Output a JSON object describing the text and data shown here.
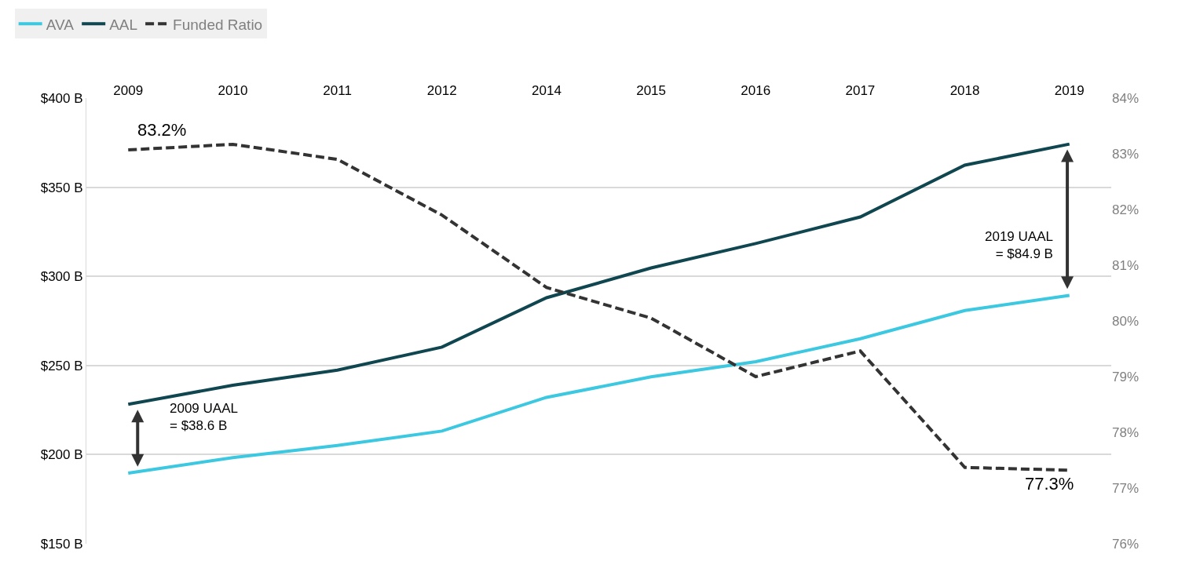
{
  "chart_data": {
    "type": "line",
    "categories": [
      "2009",
      "2010",
      "2011",
      "2012",
      "2014",
      "2015",
      "2016",
      "2017",
      "2018",
      "2019"
    ],
    "series": [
      {
        "name": "AVA",
        "color": "#3cc8e1",
        "values": [
          189.6,
          198.3,
          205.1,
          213.2,
          232.1,
          243.6,
          252.1,
          265.0,
          280.8,
          289.3
        ]
      },
      {
        "name": "AAL",
        "color": "#0f4650",
        "values": [
          228.2,
          238.9,
          247.4,
          260.3,
          288.0,
          304.7,
          318.4,
          333.3,
          362.4,
          374.2
        ]
      },
      {
        "name": "Funded Ratio",
        "color": "#333333",
        "axis": "y2",
        "line_style": "dashed",
        "values": [
          83.07,
          83.17,
          82.9,
          81.9,
          80.6,
          80.05,
          79.0,
          79.46,
          77.37,
          77.32
        ]
      }
    ],
    "ylim": [
      150,
      400
    ],
    "yticks": [
      {
        "value": 150,
        "label": "$150 B"
      },
      {
        "value": 200,
        "label": "$200 B"
      },
      {
        "value": 250,
        "label": "$250 B"
      },
      {
        "value": 300,
        "label": "$300 B"
      },
      {
        "value": 350,
        "label": "$350 B"
      },
      {
        "value": 400,
        "label": "$400 B"
      }
    ],
    "y2lim": [
      76,
      84
    ],
    "y2ticks": [
      {
        "value": 76,
        "label": "76%"
      },
      {
        "value": 77,
        "label": "77%"
      },
      {
        "value": 78,
        "label": "78%"
      },
      {
        "value": 79,
        "label": "79%"
      },
      {
        "value": 80,
        "label": "80%"
      },
      {
        "value": 81,
        "label": "81%"
      },
      {
        "value": 82,
        "label": "82%"
      },
      {
        "value": 83,
        "label": "83%"
      },
      {
        "value": 84,
        "label": "84%"
      }
    ],
    "annotations": [
      "83.2%",
      "77.3%",
      "2009 UAAL\n= $38.6 B",
      "2019 UAAL\n= $84.9 B"
    ],
    "grid": "y",
    "legend": "top left",
    "marker": "none"
  }
}
